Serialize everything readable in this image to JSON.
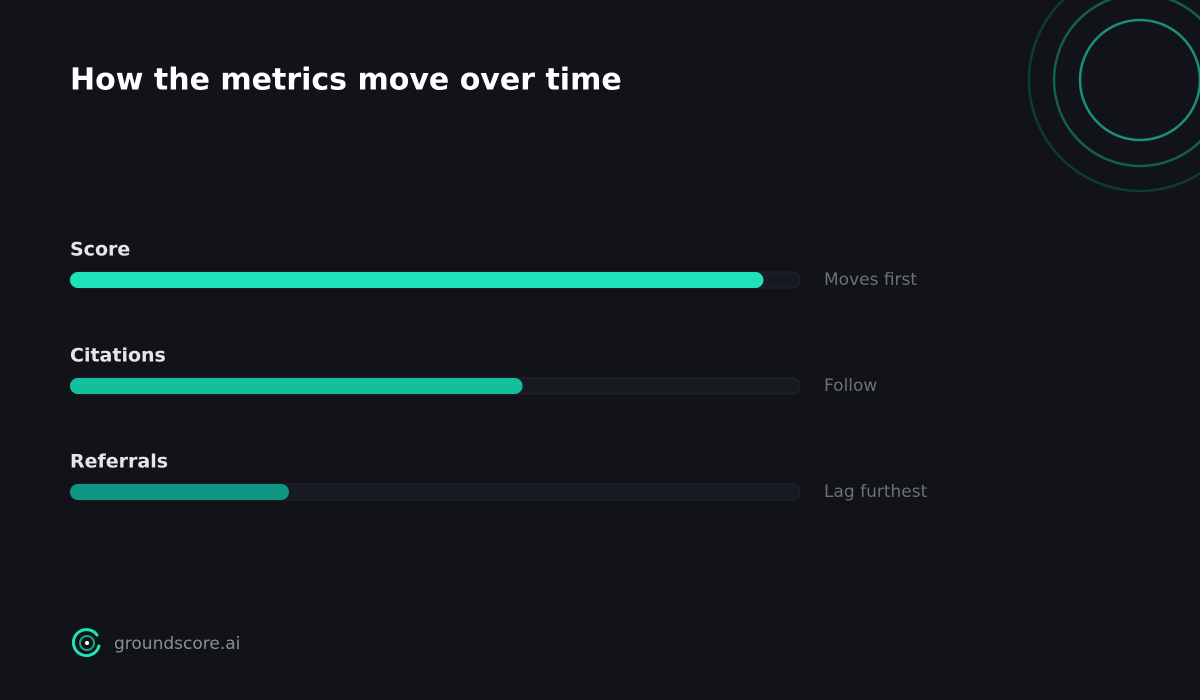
{
  "chart_data": {
    "type": "bar",
    "orientation": "horizontal",
    "title": "How the metrics move over time",
    "categories": [
      "Score",
      "Citations",
      "Referrals"
    ],
    "values": [
      95,
      62,
      30
    ],
    "colors": [
      "#1ee3b8",
      "#12c09e",
      "#109483"
    ],
    "notes": [
      "Moves first",
      "Follow",
      "Lag furthest"
    ],
    "xlim": [
      0,
      100
    ]
  },
  "footer": {
    "brand": "groundscore.ai"
  }
}
